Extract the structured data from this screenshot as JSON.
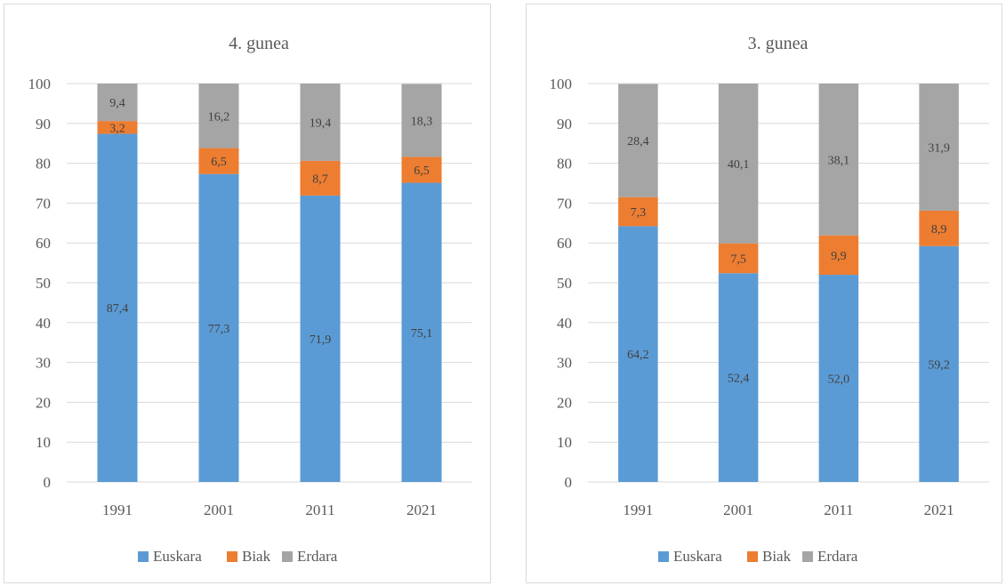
{
  "colors": {
    "Euskara": "#5b9bd5",
    "Biak": "#ed7d31",
    "Erdara": "#a5a5a5",
    "grid": "#d9d9d9",
    "text": "#595959"
  },
  "chart_data": [
    {
      "type": "bar",
      "stacked": true,
      "title": "4. gunea",
      "categories": [
        "1991",
        "2001",
        "2011",
        "2021"
      ],
      "ylim": [
        0,
        100
      ],
      "yticks": [
        "0",
        "10",
        "20",
        "30",
        "40",
        "50",
        "60",
        "70",
        "80",
        "90",
        "100"
      ],
      "grid": true,
      "legend": "bottom",
      "series": [
        {
          "name": "Euskara",
          "values": [
            87.4,
            77.3,
            71.9,
            75.1
          ],
          "labels": [
            "87,4",
            "77,3",
            "71,9",
            "75,1"
          ]
        },
        {
          "name": "Biak",
          "values": [
            3.2,
            6.5,
            8.7,
            6.5
          ],
          "labels": [
            "3,2",
            "6,5",
            "8,7",
            "6,5"
          ]
        },
        {
          "name": "Erdara",
          "values": [
            9.4,
            16.2,
            19.4,
            18.3
          ],
          "labels": [
            "9,4",
            "16,2",
            "19,4",
            "18,3"
          ]
        }
      ]
    },
    {
      "type": "bar",
      "stacked": true,
      "title": "3. gunea",
      "categories": [
        "1991",
        "2001",
        "2011",
        "2021"
      ],
      "ylim": [
        0,
        100
      ],
      "yticks": [
        "0",
        "10",
        "20",
        "30",
        "40",
        "50",
        "60",
        "70",
        "80",
        "90",
        "100"
      ],
      "grid": true,
      "legend": "bottom",
      "series": [
        {
          "name": "Euskara",
          "values": [
            64.2,
            52.4,
            52.0,
            59.2
          ],
          "labels": [
            "64,2",
            "52,4",
            "52,0",
            "59,2"
          ]
        },
        {
          "name": "Biak",
          "values": [
            7.3,
            7.5,
            9.9,
            8.9
          ],
          "labels": [
            "7,3",
            "7,5",
            "9,9",
            "8,9"
          ]
        },
        {
          "name": "Erdara",
          "values": [
            28.4,
            40.1,
            38.1,
            31.9
          ],
          "labels": [
            "28,4",
            "40,1",
            "38,1",
            "31,9"
          ]
        }
      ]
    }
  ]
}
